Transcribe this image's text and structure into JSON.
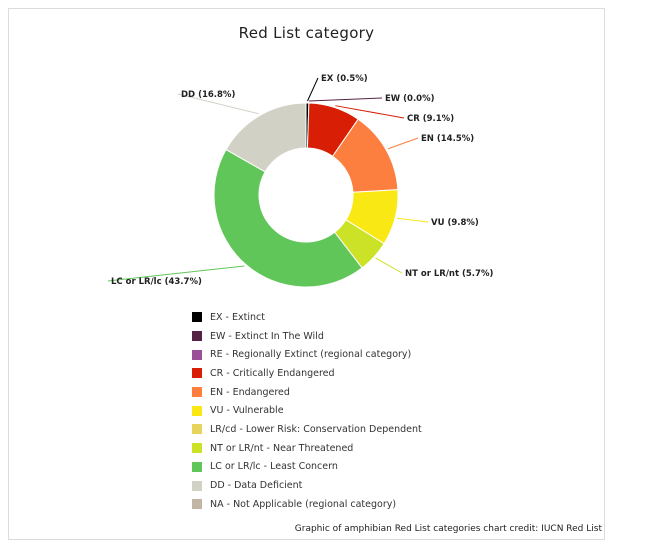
{
  "chart_data": {
    "type": "pie",
    "title": "Red List category",
    "slices": [
      {
        "code": "EX",
        "label": "EX (0.5%)",
        "value": 0.5,
        "color": "#000000"
      },
      {
        "code": "EW",
        "label": "EW (0.0%)",
        "value": 0.0,
        "color": "#542344"
      },
      {
        "code": "CR",
        "label": "CR (9.1%)",
        "value": 9.1,
        "color": "#d81e05"
      },
      {
        "code": "EN",
        "label": "EN (14.5%)",
        "value": 14.5,
        "color": "#fc7f3f"
      },
      {
        "code": "VU",
        "label": "VU (9.8%)",
        "value": 9.8,
        "color": "#f9e814"
      },
      {
        "code": "NT",
        "label": "NT or LR/nt (5.7%)",
        "value": 5.7,
        "color": "#cce226"
      },
      {
        "code": "LC",
        "label": "LC or LR/lc (43.7%)",
        "value": 43.7,
        "color": "#60c659"
      },
      {
        "code": "DD",
        "label": "DD (16.8%)",
        "value": 16.8,
        "color": "#d1d1c6"
      }
    ],
    "legend": [
      {
        "label": "EX - Extinct",
        "color": "#000000"
      },
      {
        "label": "EW - Extinct In The Wild",
        "color": "#542344"
      },
      {
        "label": "RE - Regionally Extinct (regional category)",
        "color": "#9b4f96"
      },
      {
        "label": "CR - Critically Endangered",
        "color": "#d81e05"
      },
      {
        "label": "EN - Endangered",
        "color": "#fc7f3f"
      },
      {
        "label": "VU - Vulnerable",
        "color": "#f9e814"
      },
      {
        "label": "LR/cd - Lower Risk: Conservation Dependent",
        "color": "#e8d35c"
      },
      {
        "label": "NT or LR/nt - Near Threatened",
        "color": "#cce226"
      },
      {
        "label": "LC or LR/lc - Least Concern",
        "color": "#60c659"
      },
      {
        "label": "DD - Data Deficient",
        "color": "#d1d1c6"
      },
      {
        "label": "NA - Not Applicable (regional category)",
        "color": "#c1b5a5"
      }
    ],
    "legend_placement": "bottom"
  },
  "credit": "Graphic of amphibian Red List categories chart credit: IUCN Red List"
}
